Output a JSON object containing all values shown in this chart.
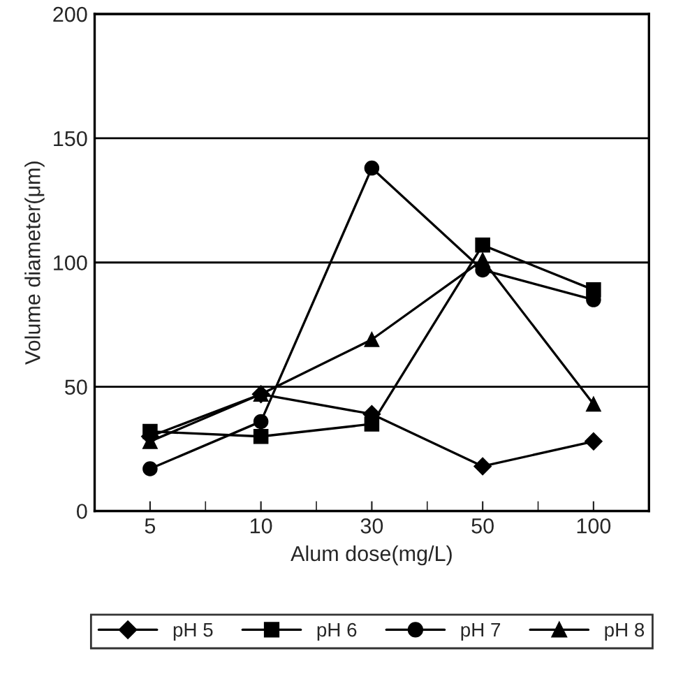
{
  "chart_data": {
    "type": "line",
    "xlabel": "Alum dose(mg/L)",
    "ylabel": "Volume diameter(μm)",
    "categories": [
      "5",
      "10",
      "30",
      "50",
      "100"
    ],
    "series": [
      {
        "name": "pH 5",
        "color": "#000000",
        "marker": "diamond",
        "values": [
          30,
          47,
          39,
          18,
          28
        ]
      },
      {
        "name": "pH 6",
        "color": "#000000",
        "marker": "square",
        "values": [
          32,
          30,
          35,
          107,
          89
        ]
      },
      {
        "name": "pH 7",
        "color": "#000000",
        "marker": "circle",
        "values": [
          17,
          36,
          138,
          97,
          85
        ]
      },
      {
        "name": "pH 8",
        "color": "#000000",
        "marker": "triangle",
        "values": [
          28,
          47,
          69,
          101,
          43
        ]
      }
    ],
    "ylim": [
      0,
      200
    ],
    "yticks": [
      0,
      50,
      100,
      150,
      200
    ],
    "grid": "y",
    "legend": "bottom",
    "line_style": "solid"
  }
}
